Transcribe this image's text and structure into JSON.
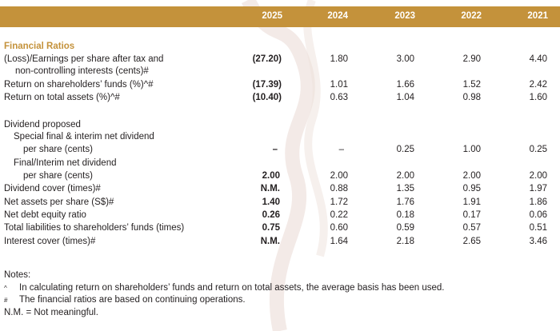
{
  "header": {
    "years": [
      "2025",
      "2024",
      "2023",
      "2022",
      "2021"
    ]
  },
  "section_title": "Financial Ratios",
  "rows": [
    {
      "label": "(Loss)/Earnings per share after tax and",
      "values": [
        "(27.20)",
        "1.80",
        "3.00",
        "2.90",
        "4.40"
      ]
    },
    {
      "label": "non-controlling interests (cents)#",
      "values": [
        "",
        "",
        "",
        "",
        ""
      ]
    },
    {
      "label": "Return on shareholders’ funds (%)^#",
      "values": [
        "(17.39)",
        "1.01",
        "1.66",
        "1.52",
        "2.42"
      ]
    },
    {
      "label": "Return on total assets (%)^#",
      "values": [
        "(10.40)",
        "0.63",
        "1.04",
        "0.98",
        "1.60"
      ]
    },
    {
      "label": "Dividend proposed",
      "values": [
        "",
        "",
        "",
        "",
        ""
      ]
    },
    {
      "label": "Special final & interim net dividend",
      "values": [
        "",
        "",
        "",
        "",
        ""
      ]
    },
    {
      "label": "per share (cents)",
      "values": [
        "–",
        "–",
        "0.25",
        "1.00",
        "0.25"
      ]
    },
    {
      "label": "Final/Interim net dividend",
      "values": [
        "",
        "",
        "",
        "",
        ""
      ]
    },
    {
      "label": "per share (cents)",
      "values": [
        "2.00",
        "2.00",
        "2.00",
        "2.00",
        "2.00"
      ]
    },
    {
      "label": "Dividend cover (times)#",
      "values": [
        "N.M.",
        "0.88",
        "1.35",
        "0.95",
        "1.97"
      ]
    },
    {
      "label": "Net assets per share (S$)#",
      "values": [
        "1.40",
        "1.72",
        "1.76",
        "1.91",
        "1.86"
      ]
    },
    {
      "label": "Net debt equity ratio",
      "values": [
        "0.26",
        "0.22",
        "0.18",
        "0.17",
        "0.06"
      ]
    },
    {
      "label": "Total liabilities to shareholders’ funds (times)",
      "values": [
        "0.75",
        "0.60",
        "0.59",
        "0.57",
        "0.51"
      ]
    },
    {
      "label": "Interest cover (times)#",
      "values": [
        "N.M.",
        "1.64",
        "2.18",
        "2.65",
        "3.46"
      ]
    }
  ],
  "notes": {
    "title": "Notes:",
    "items": [
      {
        "marker": "^",
        "text": "In calculating return on shareholders’ funds and return on total assets, the average basis has been used."
      },
      {
        "marker": "#",
        "text": "The financial ratios are based on continuing operations."
      },
      {
        "marker": "",
        "text": "N.M. = Not meaningful."
      }
    ]
  },
  "colors": {
    "header_bg": "#c4923b",
    "accent": "#c4923b",
    "text": "#231f20"
  }
}
